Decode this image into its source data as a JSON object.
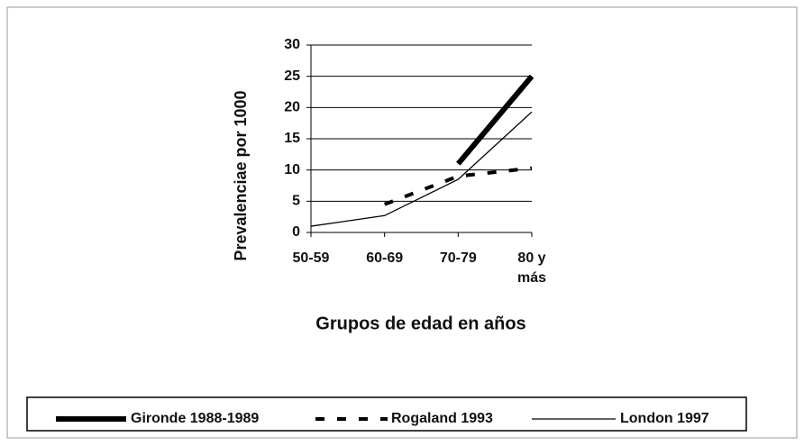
{
  "chart_data": {
    "type": "line",
    "categories": [
      "50-59",
      "60-69",
      "70-79",
      "80 y más"
    ],
    "series": [
      {
        "name": "Gironde 1988-1989",
        "color": "#000000",
        "values": [
          null,
          null,
          11,
          25
        ]
      },
      {
        "name": "Rogaland 1993",
        "color": "#000000",
        "values": [
          null,
          4.5,
          9,
          10.3
        ]
      },
      {
        "name": "London 1997",
        "color": "#000000",
        "values": [
          1,
          2.7,
          8.5,
          19.3
        ]
      }
    ],
    "ylim": [
      0,
      30
    ],
    "yticks": [
      0,
      5,
      10,
      15,
      20,
      25,
      30
    ],
    "grid": true,
    "y_label": "Prevalenciae por 1000",
    "x_label": "Grupos de edad en años",
    "legend": "bottom"
  }
}
